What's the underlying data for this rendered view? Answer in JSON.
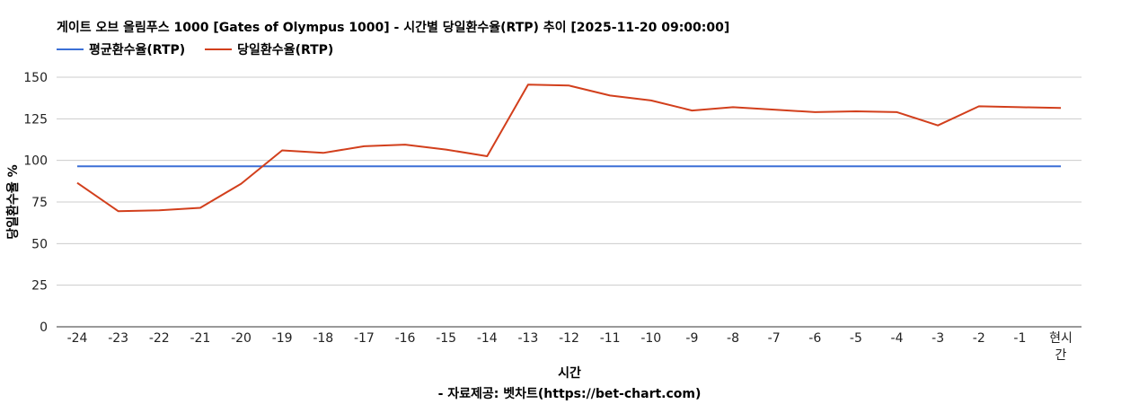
{
  "chart_data": {
    "type": "line",
    "title": "게이트 오브 올림푸스 1000 [Gates of Olympus 1000] - 시간별 당일환수율(RTP) 추이 [2025-11-20 09:00:00]",
    "xlabel": "시간",
    "ylabel": "당일환수율 %",
    "categories": [
      "-24",
      "-23",
      "-22",
      "-21",
      "-20",
      "-19",
      "-18",
      "-17",
      "-16",
      "-15",
      "-14",
      "-13",
      "-12",
      "-11",
      "-10",
      "-9",
      "-8",
      "-7",
      "-6",
      "-5",
      "-4",
      "-3",
      "-2",
      "-1",
      "현시간"
    ],
    "ylim": [
      0,
      150
    ],
    "yticks": [
      0,
      25,
      50,
      75,
      100,
      125,
      150
    ],
    "grid": true,
    "legend_position": "top-left",
    "series": [
      {
        "name": "평균환수율(RTP)",
        "color": "#3b6fd6",
        "values": [
          96.5,
          96.5,
          96.5,
          96.5,
          96.5,
          96.5,
          96.5,
          96.5,
          96.5,
          96.5,
          96.5,
          96.5,
          96.5,
          96.5,
          96.5,
          96.5,
          96.5,
          96.5,
          96.5,
          96.5,
          96.5,
          96.5,
          96.5,
          96.5,
          96.5
        ]
      },
      {
        "name": "당일환수율(RTP)",
        "color": "#d23f1c",
        "values": [
          86.5,
          69.5,
          70,
          71.5,
          86,
          106,
          104.5,
          108.5,
          109.5,
          106.5,
          102.5,
          145.5,
          145,
          139,
          136,
          130,
          132,
          130.5,
          129,
          129.5,
          129,
          121,
          132.5,
          132,
          131.5
        ]
      }
    ],
    "source": "- 자료제공: 벳차트(https://bet-chart.com)"
  }
}
